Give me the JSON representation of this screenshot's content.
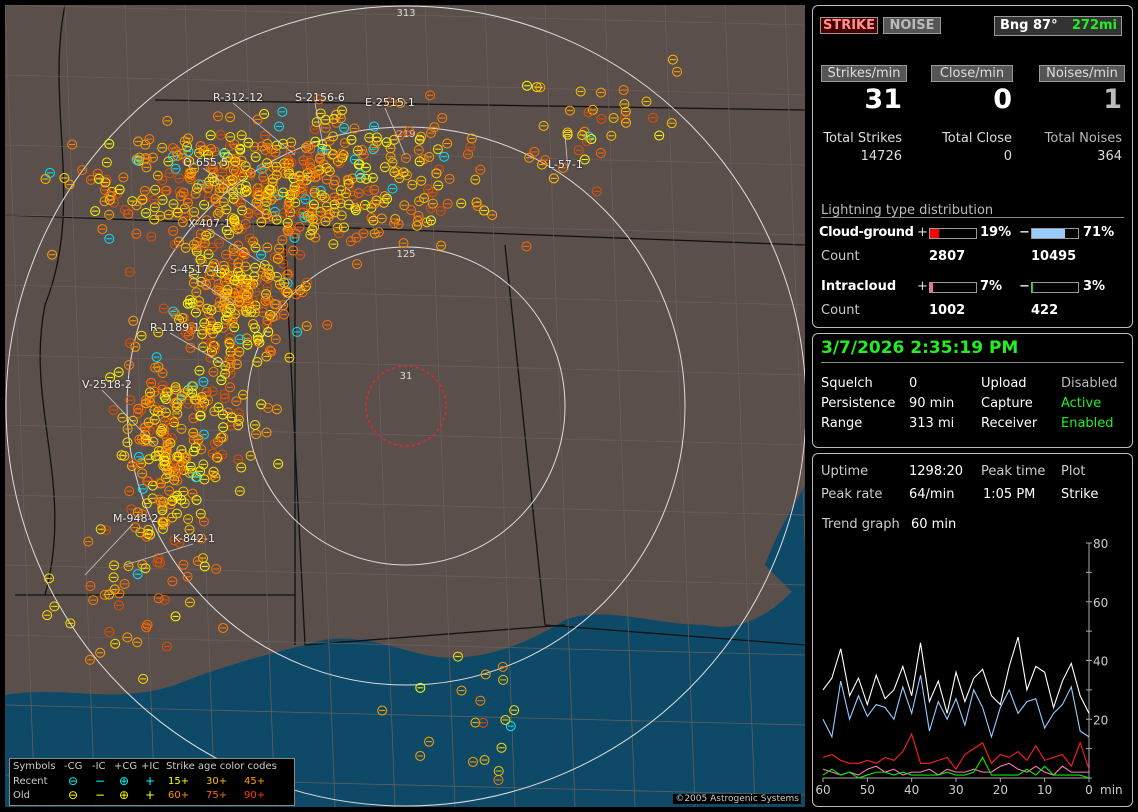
{
  "map": {
    "range_rings": [
      "313",
      "219",
      "125",
      "31"
    ],
    "storm_labels": [
      "R-312-12",
      "S-2156-6",
      "E-2515-1",
      "Q-655-5",
      "X-407-1",
      "S-4517-4",
      "R-1189-1",
      "V-2518-2",
      "M-948-2",
      "K-842-1",
      "L-57-1"
    ],
    "copyright": "©2005 Astrogenic Systems",
    "colors": {
      "land": "#5b4f4c",
      "water": "#0e4a68",
      "ring": "#dddddd",
      "close_ring": "#ff2020"
    }
  },
  "legend": {
    "symbols_label": "Symbols",
    "headers": [
      "-CG",
      "-IC",
      "+CG",
      "+IC"
    ],
    "rows": [
      "Recent",
      "Old"
    ],
    "age_title": "Strike age color codes",
    "age_codes": [
      {
        "label": "15+",
        "color": "#ffff00"
      },
      {
        "label": "30+",
        "color": "#ffc000"
      },
      {
        "label": "45+",
        "color": "#ffa000"
      },
      {
        "label": "60+",
        "color": "#ff9000"
      },
      {
        "label": "75+",
        "color": "#ff6a00"
      },
      {
        "label": "90+",
        "color": "#ff4000"
      }
    ]
  },
  "top_panel": {
    "strike_button": "STRIKE",
    "noise_button": "NOISE",
    "bearing": "Bng 87°",
    "distance": "272mi",
    "rates": [
      {
        "label": "Strikes/min",
        "value": "31",
        "total_label": "Total Strikes",
        "total": "14726"
      },
      {
        "label": "Close/min",
        "value": "0",
        "total_label": "Total Close",
        "total": "0"
      },
      {
        "label": "Noises/min",
        "value": "1",
        "total_label": "Total Noises",
        "total": "364"
      }
    ],
    "distribution_title": "Lightning type distribution",
    "cloud_ground": {
      "label": "Cloud-ground",
      "pos_pct": "19%",
      "neg_pct": "71%",
      "pos_fill": 19,
      "neg_fill": 71,
      "count_label": "Count",
      "pos_count": "2807",
      "neg_count": "10495"
    },
    "intracloud": {
      "label": "Intracloud",
      "pos_pct": "7%",
      "neg_pct": "3%",
      "pos_fill": 7,
      "neg_fill": 3,
      "count_label": "Count",
      "pos_count": "1002",
      "neg_count": "422"
    },
    "plus": "+",
    "minus": "−"
  },
  "status_panel": {
    "datetime": "3/7/2026 2:35:19 PM",
    "rows": [
      {
        "k1": "Squelch",
        "v1": "0",
        "k2": "Upload",
        "v2": "Disabled"
      },
      {
        "k1": "Persistence",
        "v1": "90 min",
        "k2": "Capture",
        "v2": "Active"
      },
      {
        "k1": "Range",
        "v1": "313 mi",
        "k2": "Receiver",
        "v2": "Enabled"
      }
    ]
  },
  "stats_panel": {
    "uptime_label": "Uptime",
    "uptime": "1298:20",
    "peak_time_label": "Peak time",
    "peak_time": "1:05 PM",
    "plot_label": "Plot",
    "plot": "Strike",
    "peak_rate_label": "Peak rate",
    "peak_rate": "64/min",
    "trend_label": "Trend graph",
    "trend": "60 min"
  },
  "chart_data": {
    "type": "line",
    "x_ticks": [
      "60",
      "50",
      "40",
      "30",
      "20",
      "10",
      "0"
    ],
    "x_unit": "min",
    "xlim": [
      60,
      0
    ],
    "y_ticks": [
      "80",
      "60",
      "40",
      "20"
    ],
    "ylim": [
      0,
      80
    ],
    "x": [
      60,
      58,
      56,
      54,
      52,
      50,
      48,
      46,
      44,
      42,
      40,
      38,
      36,
      34,
      32,
      30,
      28,
      26,
      24,
      22,
      20,
      18,
      16,
      14,
      12,
      10,
      8,
      6,
      4,
      2,
      0
    ],
    "series": [
      {
        "color": "#ffffff",
        "values": [
          30,
          34,
          44,
          28,
          34,
          25,
          35,
          27,
          30,
          38,
          28,
          46,
          26,
          33,
          22,
          36,
          26,
          34,
          37,
          28,
          25,
          38,
          48,
          30,
          38,
          36,
          24,
          33,
          39,
          28,
          22
        ]
      },
      {
        "color": "#99ccff",
        "values": [
          20,
          14,
          33,
          20,
          28,
          21,
          25,
          24,
          20,
          31,
          22,
          35,
          16,
          26,
          20,
          27,
          18,
          30,
          24,
          14,
          24,
          30,
          22,
          26,
          27,
          17,
          22,
          25,
          31,
          16,
          14
        ]
      },
      {
        "color": "#ff2020",
        "values": [
          7,
          8,
          6,
          5,
          5,
          6,
          5,
          7,
          6,
          9,
          15,
          5,
          5,
          6,
          7,
          3,
          8,
          10,
          12,
          5,
          8,
          7,
          9,
          6,
          11,
          6,
          7,
          8,
          4,
          12,
          3
        ]
      },
      {
        "color": "#ff77bb",
        "values": [
          3,
          2,
          1,
          2,
          1,
          3,
          4,
          2,
          3,
          1,
          2,
          2,
          3,
          1,
          3,
          2,
          2,
          3,
          2,
          2,
          4,
          5,
          3,
          2,
          4,
          2,
          1,
          4,
          2,
          2,
          2
        ]
      },
      {
        "color": "#00ee00",
        "values": [
          1,
          3,
          1,
          2,
          0,
          1,
          2,
          2,
          1,
          2,
          1,
          1,
          1,
          1,
          2,
          1,
          1,
          2,
          7,
          1,
          1,
          1,
          1,
          3,
          1,
          4,
          1,
          1,
          1,
          1,
          0
        ]
      }
    ]
  }
}
